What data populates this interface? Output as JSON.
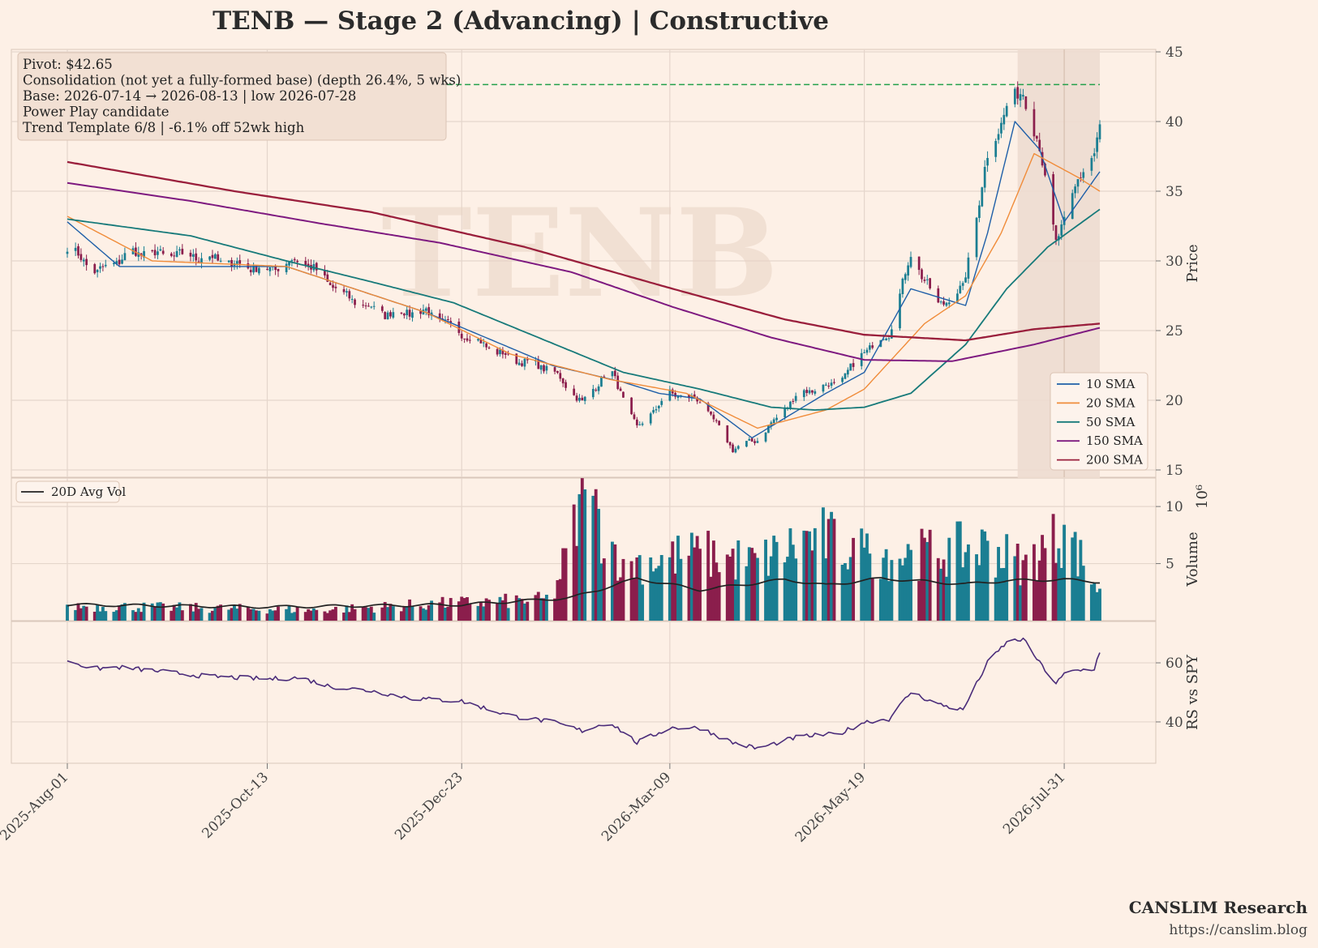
{
  "title": "TENB  —  Stage 2 (Advancing)  |  Constructive",
  "watermark": "TENB",
  "brand": {
    "name": "CANSLIM Research",
    "url": "https://canslim.blog"
  },
  "info_box": {
    "lines": [
      "Pivot: $42.65",
      "Consolidation (not yet a fully-formed base)  (depth 26.4%, 5 wks)",
      "Base: 2026-07-14 → 2026-08-13  |  low 2026-07-28",
      "Power Play candidate",
      "Trend Template 6/8  |  -6.1% off 52wk high"
    ]
  },
  "colors": {
    "up": "#1b7e92",
    "down": "#8b1e4c",
    "pivot": "#22a04a",
    "sma10": "#1f5fa8",
    "sma20": "#f08c3a",
    "sma50": "#177a7a",
    "sma150": "#7e1a80",
    "sma200": "#9a1f3c",
    "avgvol": "#222222",
    "rs": "#4b2c7a",
    "grid": "#e5d6cc",
    "base_shade": "#eddcd0"
  },
  "chart_data": [
    {
      "type": "candlestick",
      "panel": "price",
      "ylabel": "Price",
      "ylim": [
        15,
        45
      ],
      "yticks": [
        15,
        20,
        25,
        30,
        35,
        40,
        45
      ],
      "x_start": "2025-08-01",
      "x_end": "2026-08-13",
      "xticks": [
        "2025-Aug-01",
        "2025-Oct-13",
        "2025-Dec-23",
        "2026-Mar-09",
        "2026-May-19",
        "2026-Jul-31"
      ],
      "pivot": 42.65,
      "base_range": [
        "2026-07-14",
        "2026-08-13"
      ],
      "key_points": [
        {
          "date": "2025-08-01",
          "close": 31.0
        },
        {
          "date": "2025-08-12",
          "close": 29.2
        },
        {
          "date": "2025-08-25",
          "close": 30.6
        },
        {
          "date": "2025-09-20",
          "close": 30.3
        },
        {
          "date": "2025-10-13",
          "close": 29.3
        },
        {
          "date": "2025-10-25",
          "close": 30.2
        },
        {
          "date": "2025-11-10",
          "close": 27.5
        },
        {
          "date": "2025-11-25",
          "close": 26.2
        },
        {
          "date": "2025-12-10",
          "close": 26.4
        },
        {
          "date": "2025-12-23",
          "close": 24.8
        },
        {
          "date": "2026-01-10",
          "close": 23.0
        },
        {
          "date": "2026-01-25",
          "close": 22.2
        },
        {
          "date": "2026-02-05",
          "close": 19.8
        },
        {
          "date": "2026-02-15",
          "close": 22.3
        },
        {
          "date": "2026-02-25",
          "close": 18.0
        },
        {
          "date": "2026-03-09",
          "close": 20.5
        },
        {
          "date": "2026-03-20",
          "close": 20.0
        },
        {
          "date": "2026-04-01",
          "close": 16.5
        },
        {
          "date": "2026-04-10",
          "close": 17.2
        },
        {
          "date": "2026-04-25",
          "close": 20.5
        },
        {
          "date": "2026-05-10",
          "close": 21.3
        },
        {
          "date": "2026-05-19",
          "close": 23.5
        },
        {
          "date": "2026-05-28",
          "close": 24.8
        },
        {
          "date": "2026-06-05",
          "close": 30.5
        },
        {
          "date": "2026-06-15",
          "close": 26.8
        },
        {
          "date": "2026-06-24",
          "close": 28.0
        },
        {
          "date": "2026-07-03",
          "close": 37.5
        },
        {
          "date": "2026-07-10",
          "close": 41.0
        },
        {
          "date": "2026-07-16",
          "close": 42.3
        },
        {
          "date": "2026-07-22",
          "close": 38.0
        },
        {
          "date": "2026-07-28",
          "close": 31.5
        },
        {
          "date": "2026-08-01",
          "close": 33.0
        },
        {
          "date": "2026-08-05",
          "close": 36.0
        },
        {
          "date": "2026-08-11",
          "close": 37.5
        },
        {
          "date": "2026-08-13",
          "close": 39.8
        }
      ],
      "sma": [
        {
          "name": "10 SMA",
          "points": [
            [
              "2025-08-01",
              32.8
            ],
            [
              "2025-08-20",
              29.6
            ],
            [
              "2025-10-20",
              29.6
            ],
            [
              "2025-12-10",
              26.3
            ],
            [
              "2026-01-25",
              22.5
            ],
            [
              "2026-02-20",
              21.3
            ],
            [
              "2026-03-05",
              20.5
            ],
            [
              "2026-03-20",
              20.1
            ],
            [
              "2026-04-08",
              17.3
            ],
            [
              "2026-05-05",
              20.5
            ],
            [
              "2026-05-19",
              22.0
            ],
            [
              "2026-06-05",
              28.0
            ],
            [
              "2026-06-25",
              26.8
            ],
            [
              "2026-07-03",
              32.0
            ],
            [
              "2026-07-13",
              40.0
            ],
            [
              "2026-07-22",
              38.0
            ],
            [
              "2026-07-31",
              32.8
            ],
            [
              "2026-08-13",
              36.4
            ]
          ]
        },
        {
          "name": "20 SMA",
          "points": [
            [
              "2025-08-01",
              33.2
            ],
            [
              "2025-09-01",
              30.0
            ],
            [
              "2025-10-20",
              29.6
            ],
            [
              "2025-12-10",
              26.3
            ],
            [
              "2026-01-10",
              23.3
            ],
            [
              "2026-02-15",
              21.5
            ],
            [
              "2026-03-15",
              20.5
            ],
            [
              "2026-04-10",
              18.0
            ],
            [
              "2026-05-05",
              19.3
            ],
            [
              "2026-05-19",
              20.8
            ],
            [
              "2026-06-10",
              25.5
            ],
            [
              "2026-06-25",
              27.5
            ],
            [
              "2026-07-08",
              32.0
            ],
            [
              "2026-07-20",
              37.7
            ],
            [
              "2026-08-05",
              36.0
            ],
            [
              "2026-08-13",
              35.0
            ]
          ]
        },
        {
          "name": "50 SMA",
          "points": [
            [
              "2025-08-01",
              33.0
            ],
            [
              "2025-09-15",
              31.8
            ],
            [
              "2025-10-20",
              30.0
            ],
            [
              "2025-11-20",
              28.5
            ],
            [
              "2025-12-20",
              27.0
            ],
            [
              "2026-01-20",
              24.5
            ],
            [
              "2026-02-20",
              22.0
            ],
            [
              "2026-03-20",
              20.8
            ],
            [
              "2026-04-15",
              19.5
            ],
            [
              "2026-05-01",
              19.3
            ],
            [
              "2026-05-19",
              19.5
            ],
            [
              "2026-06-05",
              20.5
            ],
            [
              "2026-06-25",
              24.0
            ],
            [
              "2026-07-10",
              28.0
            ],
            [
              "2026-07-25",
              31.0
            ],
            [
              "2026-08-13",
              33.7
            ]
          ]
        },
        {
          "name": "150 SMA",
          "points": [
            [
              "2025-08-01",
              35.6
            ],
            [
              "2025-09-15",
              34.3
            ],
            [
              "2025-11-01",
              32.7
            ],
            [
              "2025-12-15",
              31.3
            ],
            [
              "2026-02-01",
              29.2
            ],
            [
              "2026-03-10",
              26.7
            ],
            [
              "2026-04-15",
              24.5
            ],
            [
              "2026-05-19",
              22.9
            ],
            [
              "2026-06-20",
              22.8
            ],
            [
              "2026-07-20",
              24.0
            ],
            [
              "2026-08-13",
              25.2
            ]
          ]
        },
        {
          "name": "200 SMA",
          "points": [
            [
              "2025-08-01",
              37.1
            ],
            [
              "2025-10-01",
              35.0
            ],
            [
              "2025-11-20",
              33.5
            ],
            [
              "2026-01-15",
              31.0
            ],
            [
              "2026-03-10",
              28.0
            ],
            [
              "2026-04-20",
              25.8
            ],
            [
              "2026-05-19",
              24.7
            ],
            [
              "2026-06-25",
              24.3
            ],
            [
              "2026-07-20",
              25.1
            ],
            [
              "2026-08-13",
              25.5
            ]
          ]
        }
      ],
      "legend": [
        "10 SMA",
        "20 SMA",
        "50 SMA",
        "150 SMA",
        "200 SMA"
      ]
    },
    {
      "type": "bar",
      "panel": "volume",
      "ylabel": "Volume",
      "y_multiplier": "10⁶",
      "ylim": [
        0,
        11.5
      ],
      "yticks": [
        5,
        10
      ],
      "legend": [
        "20D Avg Vol"
      ],
      "key_points": [
        {
          "date": "2025-08-01",
          "volume": 1.4
        },
        {
          "date": "2025-09-20",
          "volume": 1.2
        },
        {
          "date": "2025-11-01",
          "volume": 1.0
        },
        {
          "date": "2025-12-15",
          "volume": 1.6
        },
        {
          "date": "2026-01-25",
          "volume": 2.0
        },
        {
          "date": "2026-02-06",
          "volume": 11.5
        },
        {
          "date": "2026-02-20",
          "volume": 5.4
        },
        {
          "date": "2026-03-20",
          "volume": 6.3
        },
        {
          "date": "2026-04-10",
          "volume": 5.5
        },
        {
          "date": "2026-05-01",
          "volume": 8.1
        },
        {
          "date": "2026-05-19",
          "volume": 6.4
        },
        {
          "date": "2026-06-05",
          "volume": 6.2
        },
        {
          "date": "2026-07-03",
          "volume": 7.0
        },
        {
          "date": "2026-07-16",
          "volume": 5.3
        },
        {
          "date": "2026-07-31",
          "volume": 8.4
        },
        {
          "date": "2026-08-13",
          "volume": 2.8
        }
      ],
      "avg_vol": [
        [
          "2025-08-01",
          1.4
        ],
        [
          "2025-10-13",
          1.2
        ],
        [
          "2025-12-23",
          1.4
        ],
        [
          "2026-02-01",
          2.0
        ],
        [
          "2026-02-25",
          3.7
        ],
        [
          "2026-03-20",
          2.7
        ],
        [
          "2026-04-20",
          3.6
        ],
        [
          "2026-05-05",
          3.1
        ],
        [
          "2026-05-25",
          3.7
        ],
        [
          "2026-06-25",
          3.2
        ],
        [
          "2026-07-10",
          3.5
        ],
        [
          "2026-07-31",
          3.6
        ],
        [
          "2026-08-13",
          3.4
        ]
      ]
    },
    {
      "type": "line",
      "panel": "rs",
      "ylabel": "RS vs SPY",
      "ylim": [
        26,
        74
      ],
      "yticks": [
        40,
        60
      ],
      "points": [
        [
          "2025-08-01",
          61
        ],
        [
          "2025-08-10",
          58
        ],
        [
          "2025-08-20",
          58.5
        ],
        [
          "2025-09-05",
          57
        ],
        [
          "2025-09-20",
          55.5
        ],
        [
          "2025-10-13",
          54.5
        ],
        [
          "2025-10-25",
          55
        ],
        [
          "2025-11-05",
          52
        ],
        [
          "2025-11-20",
          50.5
        ],
        [
          "2025-12-05",
          48
        ],
        [
          "2025-12-23",
          47
        ],
        [
          "2026-01-10",
          42
        ],
        [
          "2026-01-25",
          40
        ],
        [
          "2026-02-05",
          37
        ],
        [
          "2026-02-15",
          40
        ],
        [
          "2026-02-25",
          33
        ],
        [
          "2026-03-09",
          38
        ],
        [
          "2026-03-20",
          38
        ],
        [
          "2026-04-01",
          33
        ],
        [
          "2026-04-10",
          31
        ],
        [
          "2026-04-25",
          35
        ],
        [
          "2026-05-10",
          36
        ],
        [
          "2026-05-19",
          40
        ],
        [
          "2026-05-28",
          41
        ],
        [
          "2026-06-05",
          50
        ],
        [
          "2026-06-15",
          46
        ],
        [
          "2026-06-24",
          44
        ],
        [
          "2026-07-03",
          60
        ],
        [
          "2026-07-10",
          67
        ],
        [
          "2026-07-16",
          68
        ],
        [
          "2026-07-22",
          60
        ],
        [
          "2026-07-28",
          53
        ],
        [
          "2026-08-01",
          57
        ],
        [
          "2026-08-11",
          58
        ],
        [
          "2026-08-13",
          64
        ]
      ]
    }
  ]
}
